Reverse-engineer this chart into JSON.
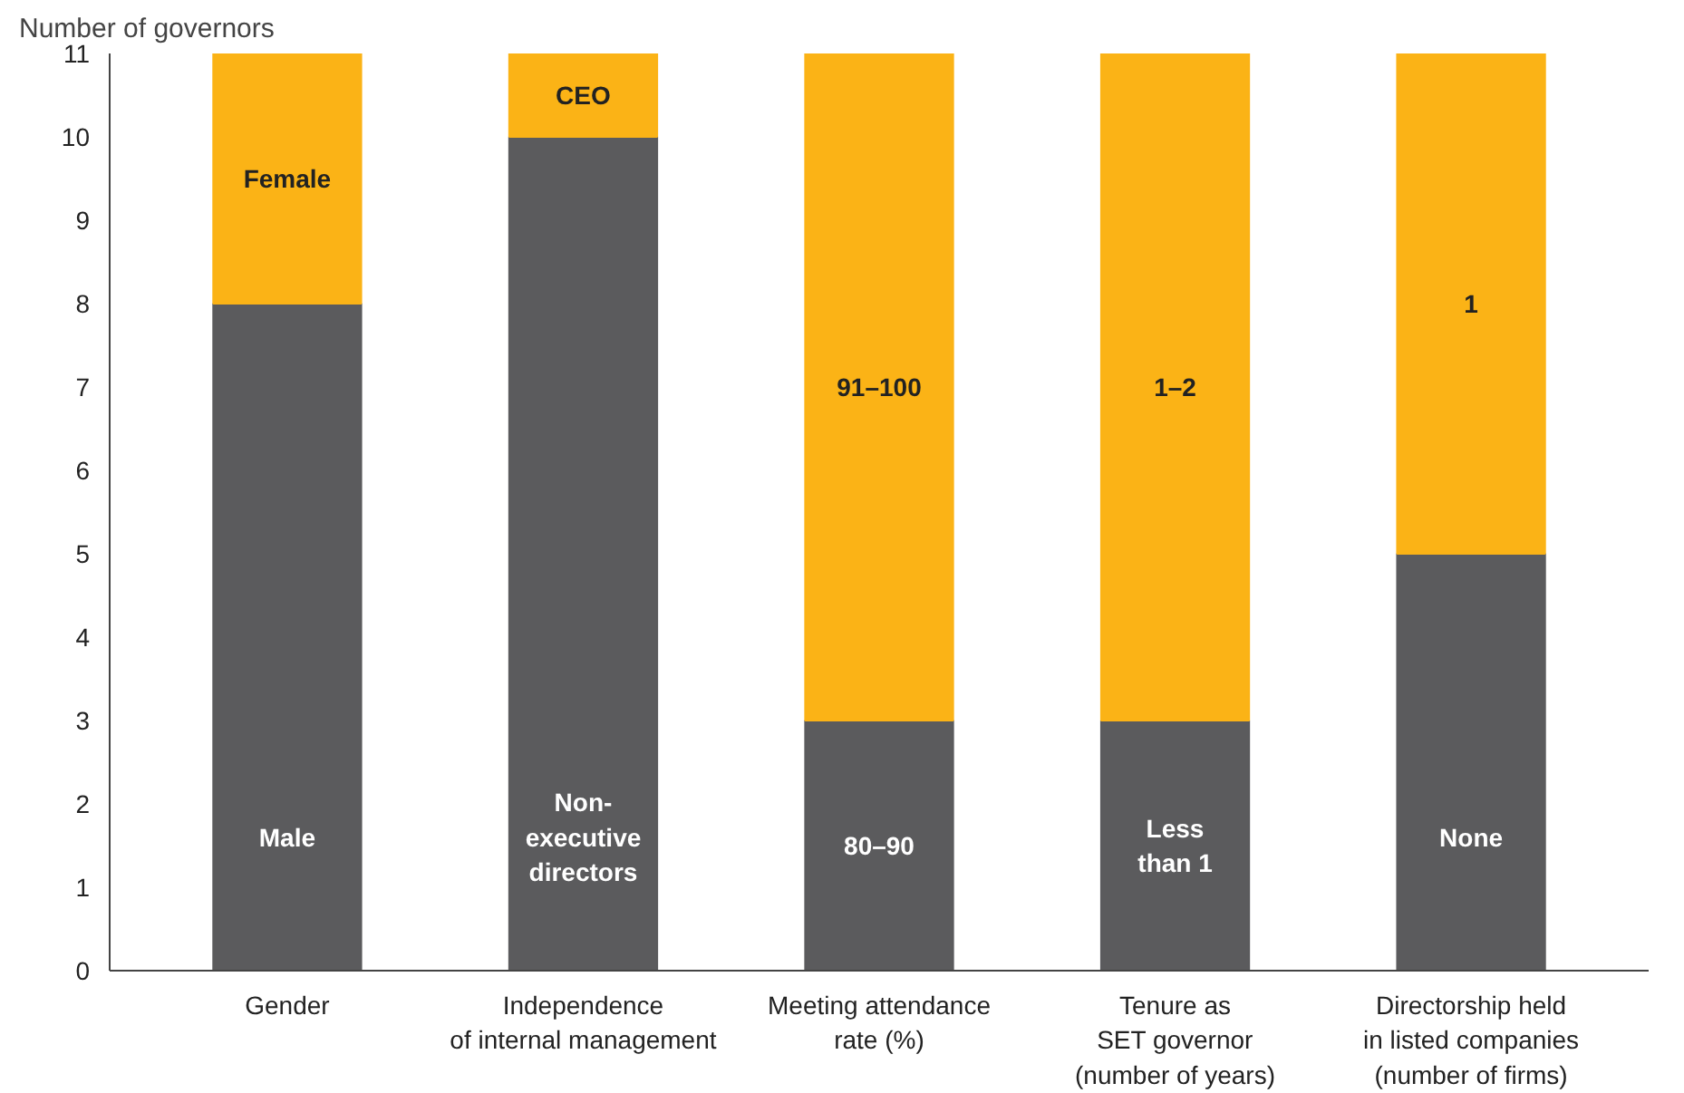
{
  "chart_data": {
    "type": "bar",
    "stacked": true,
    "ylabel": "Number of governors",
    "categories": [
      "Gender",
      "Independence\nof internal management",
      "Meeting attendance\nrate (%)",
      "Tenure as\nSET governor\n(number of years)",
      "Directorship held\nin listed companies\n(number of firms)"
    ],
    "series": [
      {
        "color": "#5b5b5d",
        "values": [
          8,
          10,
          3,
          3,
          5
        ]
      },
      {
        "color": "#fbb316",
        "values": [
          3,
          1,
          8,
          8,
          6
        ]
      }
    ],
    "annotations": [
      "Male",
      "Female",
      "Non-\nexecutive\ndirectors",
      "CEO",
      "80–90",
      "91–100",
      "Less\nthan 1",
      "1–2",
      "None",
      "1"
    ],
    "ylim": [
      0,
      11
    ],
    "yticks": [
      0,
      1,
      2,
      3,
      4,
      5,
      6,
      7,
      8,
      9,
      10,
      11
    ],
    "grid": false
  }
}
